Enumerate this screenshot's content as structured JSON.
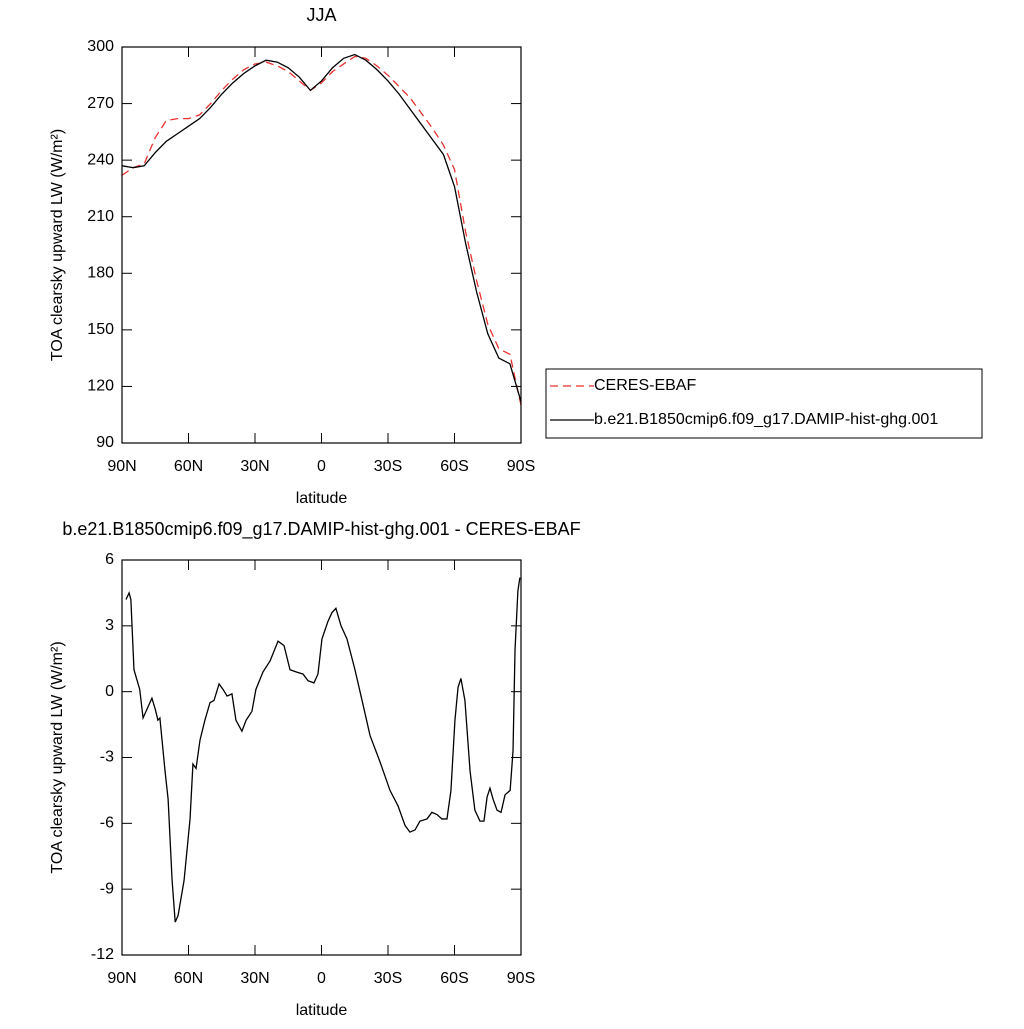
{
  "chart_data": [
    {
      "type": "line",
      "title": "JJA",
      "x_label": "latitude",
      "y_label": "TOA clearsky upward LW (W/m²)",
      "x": [
        90,
        85,
        80,
        75,
        70,
        65,
        60,
        55,
        50,
        45,
        40,
        35,
        30,
        25,
        20,
        15,
        10,
        5,
        0,
        -5,
        -10,
        -15,
        -20,
        -25,
        -30,
        -35,
        -40,
        -45,
        -50,
        -55,
        -60,
        -65,
        -70,
        -75,
        -80,
        -85,
        -90
      ],
      "series": [
        {
          "name": "CERES-EBAF",
          "color": "#e8312f",
          "line_style": "dashed",
          "values": [
            232,
            236,
            238,
            252,
            261,
            262,
            262,
            264,
            270,
            277,
            283,
            288,
            291,
            292,
            290,
            287,
            282,
            277,
            281,
            287,
            291,
            295,
            294,
            290,
            285,
            279,
            273,
            265,
            257,
            248,
            235,
            202,
            176,
            153,
            140,
            137,
            110
          ]
        },
        {
          "name": "b.e21.B1850cmip6.f09_g17.DAMIP-hist-ghg.001",
          "color": "#000000",
          "line_style": "solid",
          "values": [
            237,
            236,
            237,
            244,
            250,
            254,
            258,
            262,
            268,
            275,
            281,
            286,
            290,
            293,
            292,
            289,
            284,
            277,
            282,
            289,
            294,
            296,
            293,
            288,
            282,
            275,
            267,
            259,
            251,
            243,
            226,
            196,
            170,
            148,
            135,
            132,
            112
          ]
        }
      ],
      "xlim": [
        90,
        -90
      ],
      "xticks": [
        {
          "value": 90,
          "label": "90N"
        },
        {
          "value": 60,
          "label": "60N"
        },
        {
          "value": 30,
          "label": "30N"
        },
        0,
        {
          "value": -30,
          "label": "30S"
        },
        {
          "value": -60,
          "label": "60S"
        },
        {
          "value": -90,
          "label": "90S"
        }
      ],
      "ylim": [
        90,
        300
      ],
      "yticks": [
        90,
        120,
        150,
        180,
        210,
        240,
        270,
        300
      ],
      "legend": "right"
    },
    {
      "type": "line",
      "title": "b.e21.B1850cmip6.f09_g17.DAMIP-hist-ghg.001 - CERES-EBAF",
      "x_label": "latitude",
      "y_label": "TOA clearsky upward LW (W/m²)",
      "x": [
        88.2,
        86.8,
        86,
        84.6,
        82,
        80.5,
        78.3,
        76.5,
        75,
        73.8,
        72.9,
        70.6,
        69.2,
        67.4,
        66,
        64.7,
        62,
        59.3,
        58,
        56.6,
        54.8,
        52.6,
        50.3,
        48.5,
        46.2,
        44.4,
        42.6,
        40.4,
        38.6,
        35.9,
        34,
        31.4,
        29.6,
        26.4,
        23.2,
        19.6,
        16.9,
        14.2,
        11.5,
        8.3,
        6.1,
        3.4,
        1.6,
        -0.2,
        -2.9,
        -4.7,
        -6.5,
        -8.8,
        -11.5,
        -15.1,
        -18.3,
        -21.9,
        -26.4,
        -30.9,
        -34.5,
        -37.7,
        -39.9,
        -42.2,
        -44.4,
        -47.6,
        -49.8,
        -52.1,
        -54.3,
        -56.6,
        -58.4,
        -60.2,
        -61.6,
        -62.9,
        -64.7,
        -67,
        -69.2,
        -71.5,
        -73.3,
        -74.7,
        -76,
        -77.4,
        -79.2,
        -81,
        -82.8,
        -85.1,
        -86.4,
        -87.3,
        -88.6,
        -89.5
      ],
      "series": [
        {
          "color": "#000000",
          "line_style": "solid",
          "values": [
            4.2,
            4.5,
            4.2,
            1.0,
            0.1,
            -1.2,
            -0.7,
            -0.3,
            -0.8,
            -1.3,
            -1.2,
            -3.6,
            -4.9,
            -8.6,
            -10.5,
            -10.2,
            -8.6,
            -5.8,
            -3.3,
            -3.5,
            -2.2,
            -1.3,
            -0.5,
            -0.4,
            0.35,
            0.1,
            -0.2,
            -0.1,
            -1.3,
            -1.8,
            -1.3,
            -0.9,
            0.1,
            0.9,
            1.4,
            2.3,
            2.1,
            1.0,
            0.9,
            0.8,
            0.5,
            0.4,
            0.8,
            2.4,
            3.2,
            3.6,
            3.8,
            3.0,
            2.4,
            1.0,
            -0.4,
            -2.0,
            -3.2,
            -4.5,
            -5.2,
            -6.1,
            -6.4,
            -6.3,
            -5.9,
            -5.8,
            -5.5,
            -5.6,
            -5.8,
            -5.8,
            -4.5,
            -1.3,
            0.2,
            0.6,
            -0.4,
            -3.6,
            -5.4,
            -5.9,
            -5.9,
            -4.8,
            -4.4,
            -4.9,
            -5.4,
            -5.5,
            -4.7,
            -4.5,
            -2.7,
            1.9,
            4.6,
            5.2
          ]
        }
      ],
      "xlim": [
        90,
        -90
      ],
      "xticks": [
        {
          "value": 90,
          "label": "90N"
        },
        {
          "value": 60,
          "label": "60N"
        },
        {
          "value": 30,
          "label": "30N"
        },
        0,
        {
          "value": -30,
          "label": "30S"
        },
        {
          "value": -60,
          "label": "60S"
        },
        {
          "value": -90,
          "label": "90S"
        }
      ],
      "ylim": [
        -12,
        6
      ],
      "yticks": [
        -12,
        -9,
        -6,
        -3,
        0,
        3,
        6
      ]
    }
  ]
}
